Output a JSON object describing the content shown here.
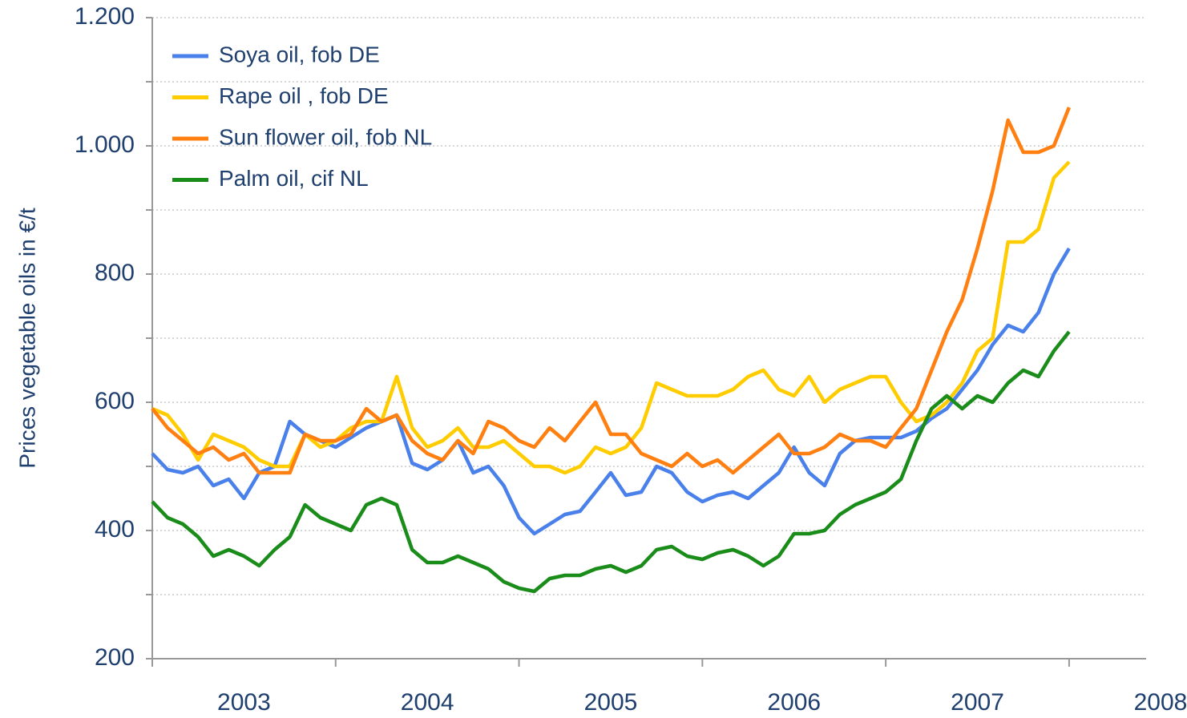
{
  "chart_data": {
    "type": "line",
    "y_label": "Prices vegetable oils in €/t",
    "x": [
      2003,
      2003.083,
      2003.167,
      2003.25,
      2003.333,
      2003.417,
      2003.5,
      2003.583,
      2003.667,
      2003.75,
      2003.833,
      2003.917,
      2004,
      2004.083,
      2004.167,
      2004.25,
      2004.333,
      2004.417,
      2004.5,
      2004.583,
      2004.667,
      2004.75,
      2004.833,
      2004.917,
      2005,
      2005.083,
      2005.167,
      2005.25,
      2005.333,
      2005.417,
      2005.5,
      2005.583,
      2005.667,
      2005.75,
      2005.833,
      2005.917,
      2006,
      2006.083,
      2006.167,
      2006.25,
      2006.333,
      2006.417,
      2006.5,
      2006.583,
      2006.667,
      2006.75,
      2006.833,
      2006.917,
      2007,
      2007.083,
      2007.167,
      2007.25,
      2007.333,
      2007.417,
      2007.5,
      2007.583,
      2007.667,
      2007.75,
      2007.833,
      2007.917,
      2008
    ],
    "series": [
      {
        "name": "Soya oil, fob DE",
        "color": "#4a80ea",
        "values": [
          520,
          495,
          490,
          500,
          470,
          480,
          450,
          490,
          500,
          570,
          550,
          540,
          530,
          545,
          560,
          570,
          580,
          505,
          495,
          510,
          540,
          490,
          500,
          470,
          420,
          395,
          410,
          425,
          430,
          460,
          490,
          455,
          460,
          500,
          490,
          460,
          445,
          455,
          460,
          450,
          470,
          490,
          530,
          490,
          470,
          520,
          540,
          545,
          545,
          545,
          555,
          575,
          590,
          620,
          650,
          690,
          720,
          710,
          740,
          800,
          840
        ]
      },
      {
        "name": "Rape oil , fob DE",
        "color": "#ffcc00",
        "values": [
          590,
          580,
          550,
          510,
          550,
          540,
          530,
          510,
          500,
          500,
          550,
          530,
          540,
          560,
          570,
          570,
          640,
          560,
          530,
          540,
          560,
          530,
          530,
          540,
          520,
          500,
          500,
          490,
          500,
          530,
          520,
          530,
          560,
          630,
          620,
          610,
          610,
          610,
          620,
          640,
          650,
          620,
          610,
          640,
          600,
          620,
          630,
          640,
          640,
          600,
          570,
          580,
          600,
          630,
          680,
          700,
          850,
          850,
          870,
          950,
          975
        ]
      },
      {
        "name": "Sun flower oil, fob NL",
        "color": "#ff7f10",
        "values": [
          590,
          560,
          540,
          520,
          530,
          510,
          520,
          490,
          490,
          490,
          550,
          540,
          540,
          550,
          590,
          570,
          580,
          540,
          520,
          510,
          540,
          520,
          570,
          560,
          540,
          530,
          560,
          540,
          570,
          600,
          550,
          550,
          520,
          510,
          500,
          520,
          500,
          510,
          490,
          510,
          530,
          550,
          520,
          520,
          530,
          550,
          540,
          540,
          530,
          560,
          590,
          650,
          710,
          760,
          840,
          930,
          1040,
          990,
          990,
          1000,
          1060
        ]
      },
      {
        "name": "Palm oil, cif NL",
        "color": "#1a8c1a",
        "values": [
          445,
          420,
          410,
          390,
          360,
          370,
          360,
          345,
          370,
          390,
          440,
          420,
          410,
          400,
          440,
          450,
          440,
          370,
          350,
          350,
          360,
          350,
          340,
          320,
          310,
          305,
          325,
          330,
          330,
          340,
          345,
          335,
          345,
          370,
          375,
          360,
          355,
          365,
          370,
          360,
          345,
          360,
          395,
          395,
          400,
          425,
          440,
          450,
          460,
          480,
          540,
          590,
          610,
          590,
          610,
          600,
          630,
          650,
          640,
          680,
          710
        ]
      }
    ],
    "xlim": [
      2003,
      2008.42
    ],
    "xticks": [
      {
        "value": 2003.5,
        "label": "2003"
      },
      {
        "value": 2004.5,
        "label": "2004"
      },
      {
        "value": 2005.5,
        "label": "2005"
      },
      {
        "value": 2006.5,
        "label": "2006"
      },
      {
        "value": 2007.5,
        "label": "2007"
      },
      {
        "value": 2008.5,
        "label": "2008"
      }
    ],
    "xticks_minor": [
      2003,
      2004,
      2005,
      2006,
      2007,
      2008
    ],
    "ylim": [
      200,
      1200
    ],
    "yticks": [
      200,
      400,
      600,
      800,
      {
        "value": 1000,
        "label": "1.000"
      },
      {
        "value": 1200,
        "label": "1.200"
      }
    ],
    "yticks_minor": [
      300,
      500,
      700,
      900,
      1100
    ],
    "grid": true,
    "legend": "upper left"
  }
}
